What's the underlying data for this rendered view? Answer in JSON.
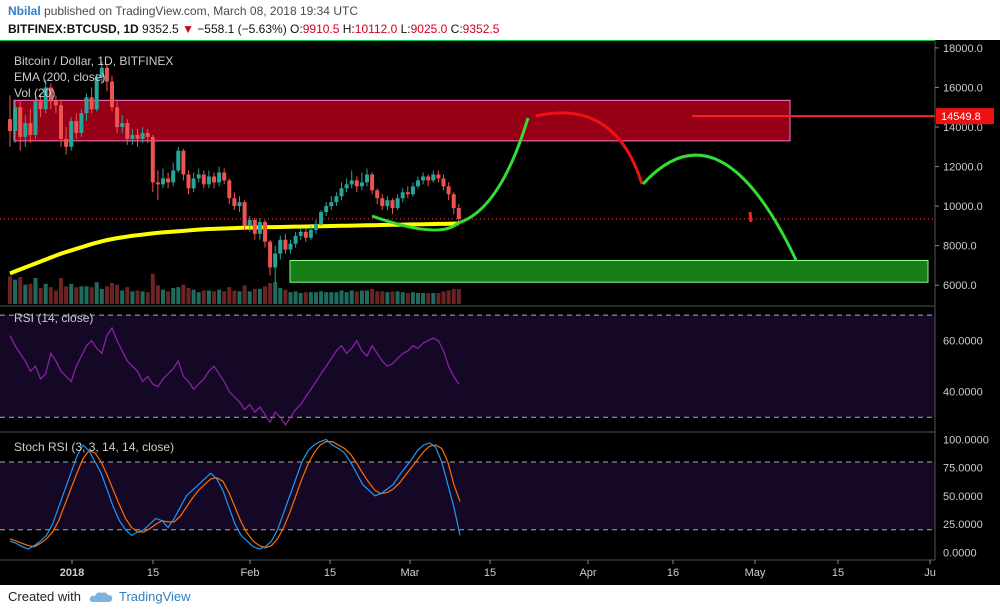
{
  "header": {
    "user": "Nbilal",
    "published": "published on TradingView.com, March 08, 2018 19:34 UTC",
    "symbol": "BITFINEX:BTCUSD, 1D",
    "last": "9352.5",
    "change": "−558.1 (−5.63%)",
    "o_label": "O:",
    "o_value": "9910.5",
    "h_label": "H:",
    "h_value": "10112.0",
    "l_label": "L:",
    "l_value": "9025.0",
    "c_label": "C:",
    "c_value": "9352.5"
  },
  "legend": {
    "title": "Bitcoin / Dollar, 1D, BITFINEX",
    "ema": "EMA (200, close)",
    "vol": "Vol (20)"
  },
  "rsi": {
    "label": "RSI (14, close)",
    "ticks": [
      "60.0000",
      "40.0000"
    ]
  },
  "stoch": {
    "label": "Stoch RSI (3, 3, 14, 14, close)",
    "ticks": [
      "100.0000",
      "75.0000",
      "50.0000",
      "25.0000",
      "0.0000"
    ]
  },
  "footer": {
    "created": "Created with",
    "brand": "TradingView"
  },
  "colors": {
    "up": "#26a69a",
    "down": "#ef5350",
    "ema": "#ffff00",
    "resistance": "#c8001e",
    "support": "#1e9e1e",
    "projection_up": "#33dd33",
    "projection_down": "#ee1111",
    "rsi": "#8e24aa",
    "stoch_k": "#2196f3",
    "stoch_d": "#ff6d00"
  },
  "chart_data": {
    "type": "candlestick",
    "price_axis": {
      "ticks": [
        18000,
        16000,
        14000,
        12000,
        10000,
        8000,
        6000
      ],
      "tick_labels": [
        "18000.0",
        "16000.0",
        "14000.0",
        "12000.0",
        "10000.0",
        "8000.0",
        "6000.0"
      ],
      "range": [
        5050,
        18300
      ]
    },
    "time_axis": {
      "tick_labels": [
        "2018",
        "15",
        "Feb",
        "15",
        "Mar",
        "15",
        "Apr",
        "16",
        "May",
        "15",
        "Ju"
      ]
    },
    "current_price": 9352.5,
    "price_marker": "14549.8",
    "candles": [
      {
        "o": 14400,
        "c": 13800,
        "h": 15600,
        "l": 13000
      },
      {
        "o": 13800,
        "c": 15000,
        "h": 15400,
        "l": 13200
      },
      {
        "o": 15000,
        "c": 13500,
        "h": 15300,
        "l": 12800
      },
      {
        "o": 13500,
        "c": 14200,
        "h": 14600,
        "l": 13000
      },
      {
        "o": 14200,
        "c": 13600,
        "h": 14900,
        "l": 13200
      },
      {
        "o": 13600,
        "c": 15300,
        "h": 15800,
        "l": 13400
      },
      {
        "o": 15300,
        "c": 14900,
        "h": 15700,
        "l": 14500
      },
      {
        "o": 14900,
        "c": 16000,
        "h": 16400,
        "l": 14700
      },
      {
        "o": 16000,
        "c": 15300,
        "h": 16200,
        "l": 14900
      },
      {
        "o": 15300,
        "c": 15100,
        "h": 15600,
        "l": 14700
      },
      {
        "o": 15100,
        "c": 13400,
        "h": 15400,
        "l": 13000
      },
      {
        "o": 13400,
        "c": 13000,
        "h": 14000,
        "l": 12600
      },
      {
        "o": 13000,
        "c": 14300,
        "h": 14500,
        "l": 12800
      },
      {
        "o": 14300,
        "c": 13700,
        "h": 14700,
        "l": 13400
      },
      {
        "o": 13700,
        "c": 14700,
        "h": 14900,
        "l": 13500
      },
      {
        "o": 14700,
        "c": 15500,
        "h": 15700,
        "l": 14300
      },
      {
        "o": 15500,
        "c": 14900,
        "h": 16000,
        "l": 14700
      },
      {
        "o": 14900,
        "c": 16500,
        "h": 16700,
        "l": 14800
      },
      {
        "o": 16500,
        "c": 17000,
        "h": 17300,
        "l": 16200
      },
      {
        "o": 17000,
        "c": 16300,
        "h": 17200,
        "l": 15800
      },
      {
        "o": 16300,
        "c": 15000,
        "h": 16600,
        "l": 14800
      },
      {
        "o": 15000,
        "c": 14000,
        "h": 15300,
        "l": 13700
      },
      {
        "o": 14000,
        "c": 14200,
        "h": 14600,
        "l": 13700
      },
      {
        "o": 14200,
        "c": 13400,
        "h": 14400,
        "l": 13100
      },
      {
        "o": 13400,
        "c": 13600,
        "h": 13900,
        "l": 13100
      },
      {
        "o": 13600,
        "c": 13400,
        "h": 13900,
        "l": 13000
      },
      {
        "o": 13400,
        "c": 13700,
        "h": 14000,
        "l": 13200
      },
      {
        "o": 13700,
        "c": 13500,
        "h": 13900,
        "l": 13200
      },
      {
        "o": 13500,
        "c": 11200,
        "h": 13600,
        "l": 10700
      },
      {
        "o": 11200,
        "c": 11100,
        "h": 11800,
        "l": 10300
      },
      {
        "o": 11100,
        "c": 11400,
        "h": 11900,
        "l": 10900
      },
      {
        "o": 11400,
        "c": 11200,
        "h": 11700,
        "l": 10900
      },
      {
        "o": 11200,
        "c": 11800,
        "h": 12200,
        "l": 11000
      },
      {
        "o": 11800,
        "c": 12800,
        "h": 13000,
        "l": 11700
      },
      {
        "o": 12800,
        "c": 11600,
        "h": 12900,
        "l": 11300
      },
      {
        "o": 11600,
        "c": 10900,
        "h": 11800,
        "l": 10600
      },
      {
        "o": 10900,
        "c": 11400,
        "h": 11700,
        "l": 10700
      },
      {
        "o": 11400,
        "c": 11600,
        "h": 11900,
        "l": 11200
      },
      {
        "o": 11600,
        "c": 11100,
        "h": 11800,
        "l": 10900
      },
      {
        "o": 11100,
        "c": 11500,
        "h": 11800,
        "l": 10900
      },
      {
        "o": 11500,
        "c": 11200,
        "h": 11700,
        "l": 10900
      },
      {
        "o": 11200,
        "c": 11700,
        "h": 12000,
        "l": 11000
      },
      {
        "o": 11700,
        "c": 11300,
        "h": 11900,
        "l": 11100
      },
      {
        "o": 11300,
        "c": 10400,
        "h": 11400,
        "l": 10100
      },
      {
        "o": 10400,
        "c": 10000,
        "h": 10700,
        "l": 9800
      },
      {
        "o": 10000,
        "c": 10200,
        "h": 10500,
        "l": 9700
      },
      {
        "o": 10200,
        "c": 9000,
        "h": 10300,
        "l": 8800
      },
      {
        "o": 9000,
        "c": 9300,
        "h": 9500,
        "l": 8700
      },
      {
        "o": 9300,
        "c": 8600,
        "h": 9400,
        "l": 8300
      },
      {
        "o": 8600,
        "c": 9200,
        "h": 9400,
        "l": 8300
      },
      {
        "o": 9200,
        "c": 8200,
        "h": 9300,
        "l": 7900
      },
      {
        "o": 8200,
        "c": 6900,
        "h": 8300,
        "l": 6500
      },
      {
        "o": 6900,
        "c": 7600,
        "h": 8000,
        "l": 6100
      },
      {
        "o": 7600,
        "c": 8300,
        "h": 8500,
        "l": 7300
      },
      {
        "o": 8300,
        "c": 7800,
        "h": 8600,
        "l": 7600
      },
      {
        "o": 7800,
        "c": 8100,
        "h": 8300,
        "l": 7600
      },
      {
        "o": 8100,
        "c": 8500,
        "h": 8700,
        "l": 7900
      },
      {
        "o": 8500,
        "c": 8700,
        "h": 8900,
        "l": 8300
      },
      {
        "o": 8700,
        "c": 8400,
        "h": 8900,
        "l": 8200
      },
      {
        "o": 8400,
        "c": 8800,
        "h": 9000,
        "l": 8300
      },
      {
        "o": 8800,
        "c": 9100,
        "h": 9300,
        "l": 8600
      },
      {
        "o": 9100,
        "c": 9700,
        "h": 9800,
        "l": 9000
      },
      {
        "o": 9700,
        "c": 10000,
        "h": 10200,
        "l": 9500
      },
      {
        "o": 10000,
        "c": 10200,
        "h": 10500,
        "l": 9800
      },
      {
        "o": 10200,
        "c": 10500,
        "h": 10700,
        "l": 10000
      },
      {
        "o": 10500,
        "c": 10900,
        "h": 11200,
        "l": 10300
      },
      {
        "o": 10900,
        "c": 11100,
        "h": 11400,
        "l": 10700
      },
      {
        "o": 11100,
        "c": 11300,
        "h": 11800,
        "l": 10900
      },
      {
        "o": 11300,
        "c": 11000,
        "h": 11500,
        "l": 10700
      },
      {
        "o": 11000,
        "c": 11200,
        "h": 11700,
        "l": 10800
      },
      {
        "o": 11200,
        "c": 11600,
        "h": 11900,
        "l": 11000
      },
      {
        "o": 11600,
        "c": 10800,
        "h": 11700,
        "l": 10600
      },
      {
        "o": 10800,
        "c": 10400,
        "h": 10900,
        "l": 10100
      },
      {
        "o": 10400,
        "c": 10000,
        "h": 10600,
        "l": 9800
      },
      {
        "o": 10000,
        "c": 10300,
        "h": 10500,
        "l": 9800
      },
      {
        "o": 10300,
        "c": 9900,
        "h": 10400,
        "l": 9600
      },
      {
        "o": 9900,
        "c": 10400,
        "h": 10600,
        "l": 9800
      },
      {
        "o": 10400,
        "c": 10700,
        "h": 10900,
        "l": 10200
      },
      {
        "o": 10700,
        "c": 10600,
        "h": 11000,
        "l": 10400
      },
      {
        "o": 10600,
        "c": 11000,
        "h": 11200,
        "l": 10500
      },
      {
        "o": 11000,
        "c": 11300,
        "h": 11500,
        "l": 10900
      },
      {
        "o": 11300,
        "c": 11500,
        "h": 11700,
        "l": 11100
      },
      {
        "o": 11500,
        "c": 11300,
        "h": 11600,
        "l": 11000
      },
      {
        "o": 11300,
        "c": 11600,
        "h": 11800,
        "l": 11200
      },
      {
        "o": 11600,
        "c": 11400,
        "h": 11800,
        "l": 11200
      },
      {
        "o": 11400,
        "c": 11000,
        "h": 11600,
        "l": 10800
      },
      {
        "o": 11000,
        "c": 10600,
        "h": 11200,
        "l": 10300
      },
      {
        "o": 10600,
        "c": 9900,
        "h": 10700,
        "l": 9600
      },
      {
        "o": 9900,
        "c": 9352.5,
        "h": 10112,
        "l": 9025
      }
    ],
    "ema200": [
      6600,
      6700,
      6800,
      6900,
      7000,
      7100,
      7200,
      7300,
      7400,
      7500,
      7600,
      7680,
      7760,
      7840,
      7920,
      8000,
      8080,
      8150,
      8220,
      8280,
      8330,
      8380,
      8420,
      8460,
      8500,
      8530,
      8560,
      8590,
      8620,
      8650,
      8670,
      8690,
      8710,
      8730,
      8750,
      8770,
      8790,
      8810,
      8830,
      8840,
      8850,
      8860,
      8870,
      8880,
      8890,
      8900,
      8910,
      8915,
      8920,
      8925,
      8930,
      8935,
      8940,
      8945,
      8950,
      8955,
      8960,
      8965,
      8970,
      8975,
      8980,
      8985,
      8990,
      8995,
      9000,
      9005,
      9010,
      9015,
      9020,
      9025,
      9030,
      9035,
      9040,
      9045,
      9050,
      9055,
      9060,
      9065,
      9070,
      9075,
      9080,
      9085,
      9090,
      9095,
      9100,
      9105,
      9110,
      9115,
      9120
    ],
    "resistance_zone": {
      "from": 13300,
      "to": 15350
    },
    "support_zone": {
      "from": 6150,
      "to": 7250
    },
    "rsi_values": [
      62,
      58,
      55,
      52,
      48,
      50,
      45,
      47,
      55,
      52,
      48,
      46,
      44,
      50,
      54,
      58,
      60,
      57,
      55,
      62,
      65,
      60,
      56,
      52,
      50,
      48,
      44,
      46,
      43,
      42,
      45,
      47,
      49,
      52,
      46,
      44,
      41,
      43,
      45,
      48,
      50,
      47,
      44,
      40,
      38,
      36,
      33,
      35,
      32,
      34,
      31,
      28,
      32,
      30,
      27,
      30,
      33,
      35,
      38,
      41,
      44,
      47,
      50,
      53,
      56,
      58,
      55,
      57,
      60,
      56,
      54,
      58,
      55,
      52,
      50,
      51,
      53,
      55,
      56,
      58,
      57,
      59,
      60,
      61,
      60,
      56,
      50,
      46,
      43
    ],
    "stoch_k": [
      10,
      8,
      5,
      3,
      6,
      10,
      15,
      25,
      40,
      55,
      70,
      85,
      95,
      90,
      80,
      70,
      55,
      40,
      28,
      20,
      15,
      18,
      20,
      25,
      30,
      28,
      22,
      30,
      40,
      50,
      55,
      60,
      65,
      70,
      65,
      55,
      40,
      25,
      15,
      10,
      5,
      3,
      5,
      10,
      20,
      35,
      50,
      65,
      80,
      90,
      95,
      98,
      100,
      95,
      92,
      88,
      80,
      70,
      60,
      55,
      50,
      52,
      56,
      60,
      68,
      75,
      82,
      90,
      95,
      97,
      93,
      80,
      60,
      40,
      15
    ],
    "stoch_d": [
      12,
      10,
      8,
      6,
      5,
      8,
      12,
      18,
      28,
      42,
      56,
      70,
      83,
      90,
      88,
      80,
      68,
      55,
      42,
      30,
      22,
      18,
      18,
      21,
      25,
      28,
      27,
      27,
      32,
      40,
      48,
      55,
      60,
      65,
      66,
      63,
      53,
      40,
      27,
      17,
      10,
      6,
      4,
      6,
      12,
      22,
      35,
      50,
      65,
      78,
      88,
      95,
      98,
      98,
      95,
      92,
      87,
      79,
      70,
      62,
      55,
      52,
      53,
      56,
      61,
      68,
      75,
      82,
      89,
      94,
      95,
      92,
      80,
      60,
      45
    ]
  }
}
